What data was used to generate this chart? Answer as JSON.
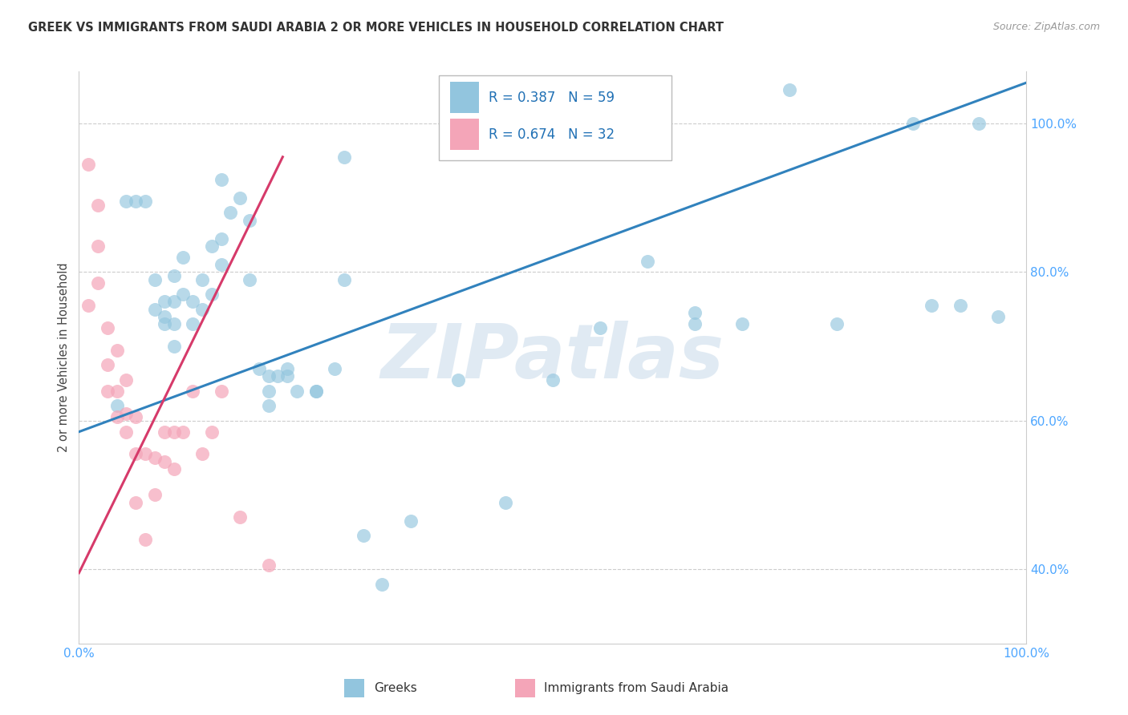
{
  "title": "GREEK VS IMMIGRANTS FROM SAUDI ARABIA 2 OR MORE VEHICLES IN HOUSEHOLD CORRELATION CHART",
  "source": "Source: ZipAtlas.com",
  "ylabel": "2 or more Vehicles in Household",
  "xlim": [
    0,
    1
  ],
  "ylim": [
    0.3,
    1.07
  ],
  "yticks": [
    0.4,
    0.6,
    0.8,
    1.0
  ],
  "ytick_labels": [
    "40.0%",
    "60.0%",
    "80.0%",
    "100.0%"
  ],
  "xtick_labels": [
    "0.0%",
    "100.0%"
  ],
  "legend_r1": "R = 0.387",
  "legend_n1": "N = 59",
  "legend_r2": "R = 0.674",
  "legend_n2": "N = 32",
  "blue_color": "#92c5de",
  "pink_color": "#f4a5b8",
  "blue_line_color": "#3182bd",
  "pink_line_color": "#d63a6a",
  "watermark_text": "ZIPatlas",
  "legend_label1": "Greeks",
  "legend_label2": "Immigrants from Saudi Arabia",
  "blue_x": [
    0.04,
    0.05,
    0.06,
    0.07,
    0.08,
    0.08,
    0.09,
    0.09,
    0.09,
    0.1,
    0.1,
    0.1,
    0.1,
    0.11,
    0.11,
    0.12,
    0.12,
    0.13,
    0.13,
    0.14,
    0.14,
    0.15,
    0.15,
    0.15,
    0.16,
    0.17,
    0.18,
    0.18,
    0.19,
    0.2,
    0.2,
    0.22,
    0.23,
    0.25,
    0.27,
    0.28,
    0.3,
    0.35,
    0.4,
    0.45,
    0.5,
    0.55,
    0.6,
    0.65,
    0.65,
    0.7,
    0.75,
    0.8,
    0.88,
    0.9,
    0.93,
    0.95,
    0.97,
    0.2,
    0.21,
    0.22,
    0.25,
    0.28,
    0.32
  ],
  "blue_y": [
    0.62,
    0.895,
    0.895,
    0.895,
    0.79,
    0.75,
    0.74,
    0.76,
    0.73,
    0.73,
    0.7,
    0.76,
    0.795,
    0.77,
    0.82,
    0.73,
    0.76,
    0.79,
    0.75,
    0.77,
    0.835,
    0.81,
    0.845,
    0.925,
    0.88,
    0.9,
    0.87,
    0.79,
    0.67,
    0.64,
    0.62,
    0.67,
    0.64,
    0.64,
    0.67,
    0.955,
    0.445,
    0.465,
    0.655,
    0.49,
    0.655,
    0.725,
    0.815,
    0.745,
    0.73,
    0.73,
    1.045,
    0.73,
    1.0,
    0.755,
    0.755,
    1.0,
    0.74,
    0.66,
    0.66,
    0.66,
    0.64,
    0.79,
    0.38
  ],
  "pink_x": [
    0.01,
    0.01,
    0.02,
    0.02,
    0.02,
    0.03,
    0.03,
    0.03,
    0.04,
    0.04,
    0.04,
    0.05,
    0.05,
    0.05,
    0.06,
    0.06,
    0.06,
    0.07,
    0.07,
    0.08,
    0.08,
    0.09,
    0.09,
    0.1,
    0.1,
    0.11,
    0.12,
    0.13,
    0.14,
    0.15,
    0.17,
    0.2
  ],
  "pink_y": [
    0.945,
    0.755,
    0.89,
    0.835,
    0.785,
    0.725,
    0.675,
    0.64,
    0.695,
    0.64,
    0.605,
    0.655,
    0.61,
    0.585,
    0.605,
    0.555,
    0.49,
    0.555,
    0.44,
    0.55,
    0.5,
    0.585,
    0.545,
    0.585,
    0.535,
    0.585,
    0.64,
    0.555,
    0.585,
    0.64,
    0.47,
    0.405
  ],
  "blue_trend_x": [
    0.0,
    1.0
  ],
  "blue_trend_y": [
    0.585,
    1.055
  ],
  "pink_trend_x": [
    0.0,
    0.215
  ],
  "pink_trend_y": [
    0.395,
    0.955
  ]
}
